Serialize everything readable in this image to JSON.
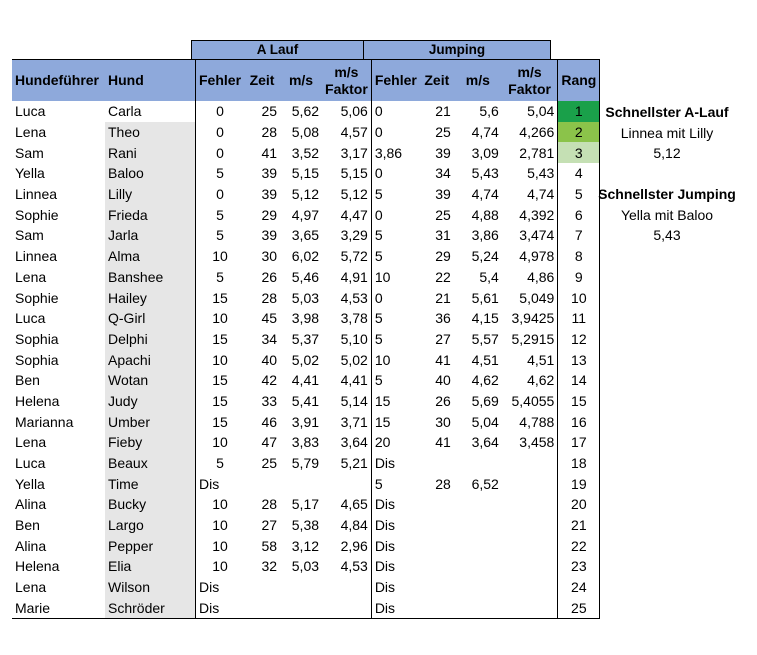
{
  "groups": {
    "a_lauf": "A Lauf",
    "jumping": "Jumping"
  },
  "headers": {
    "handler": "Hundeführer",
    "dog": "Hund",
    "a_fehler": "Fehler",
    "a_zeit": "Zeit",
    "a_ms": "m/s",
    "a_msf": "m/s Faktor",
    "j_fehler": "Fehler",
    "j_zeit": "Zeit",
    "j_ms": "m/s",
    "j_msf": "m/s Faktor",
    "rank": "Rang"
  },
  "rows": [
    {
      "h": "Luca",
      "d": "Carla",
      "af": "0",
      "az": "25",
      "ams": "5,62",
      "amsf": "5,06",
      "jf": "0",
      "jz": "21",
      "jms": "5,6",
      "jmsf": "5,04",
      "r": "1"
    },
    {
      "h": "Lena",
      "d": "Theo",
      "af": "0",
      "az": "28",
      "ams": "5,08",
      "amsf": "4,57",
      "jf": "0",
      "jz": "25",
      "jms": "4,74",
      "jmsf": "4,266",
      "r": "2"
    },
    {
      "h": "Sam",
      "d": "Rani",
      "af": "0",
      "az": "41",
      "ams": "3,52",
      "amsf": "3,17",
      "jf": "3,86",
      "jz": "39",
      "jms": "3,09",
      "jmsf": "2,781",
      "r": "3"
    },
    {
      "h": "Yella",
      "d": "Baloo",
      "af": "5",
      "az": "39",
      "ams": "5,15",
      "amsf": "5,15",
      "jf": "0",
      "jz": "34",
      "jms": "5,43",
      "jmsf": "5,43",
      "r": "4"
    },
    {
      "h": "Linnea",
      "d": "Lilly",
      "af": "0",
      "az": "39",
      "ams": "5,12",
      "amsf": "5,12",
      "jf": "5",
      "jz": "39",
      "jms": "4,74",
      "jmsf": "4,74",
      "r": "5"
    },
    {
      "h": "Sophie",
      "d": "Frieda",
      "af": "5",
      "az": "29",
      "ams": "4,97",
      "amsf": "4,47",
      "jf": "0",
      "jz": "25",
      "jms": "4,88",
      "jmsf": "4,392",
      "r": "6"
    },
    {
      "h": "Sam",
      "d": "Jarla",
      "af": "5",
      "az": "39",
      "ams": "3,65",
      "amsf": "3,29",
      "jf": "5",
      "jz": "31",
      "jms": "3,86",
      "jmsf": "3,474",
      "r": "7"
    },
    {
      "h": "Linnea",
      "d": "Alma",
      "af": "10",
      "az": "30",
      "ams": "6,02",
      "amsf": "5,72",
      "jf": "5",
      "jz": "29",
      "jms": "5,24",
      "jmsf": "4,978",
      "r": "8"
    },
    {
      "h": "Lena",
      "d": "Banshee",
      "af": "5",
      "az": "26",
      "ams": "5,46",
      "amsf": "4,91",
      "jf": "10",
      "jz": "22",
      "jms": "5,4",
      "jmsf": "4,86",
      "r": "9"
    },
    {
      "h": "Sophie",
      "d": "Hailey",
      "af": "15",
      "az": "28",
      "ams": "5,03",
      "amsf": "4,53",
      "jf": "0",
      "jz": "21",
      "jms": "5,61",
      "jmsf": "5,049",
      "r": "10"
    },
    {
      "h": "Luca",
      "d": "Q-Girl",
      "af": "10",
      "az": "45",
      "ams": "3,98",
      "amsf": "3,78",
      "jf": "5",
      "jz": "36",
      "jms": "4,15",
      "jmsf": "3,9425",
      "r": "11"
    },
    {
      "h": "Sophia",
      "d": "Delphi",
      "af": "15",
      "az": "34",
      "ams": "5,37",
      "amsf": "5,10",
      "jf": "5",
      "jz": "27",
      "jms": "5,57",
      "jmsf": "5,2915",
      "r": "12"
    },
    {
      "h": "Sophia",
      "d": "Apachi",
      "af": "10",
      "az": "40",
      "ams": "5,02",
      "amsf": "5,02",
      "jf": "10",
      "jz": "41",
      "jms": "4,51",
      "jmsf": "4,51",
      "r": "13"
    },
    {
      "h": "Ben",
      "d": "Wotan",
      "af": "15",
      "az": "42",
      "ams": "4,41",
      "amsf": "4,41",
      "jf": "5",
      "jz": "40",
      "jms": "4,62",
      "jmsf": "4,62",
      "r": "14"
    },
    {
      "h": "Helena",
      "d": "Judy",
      "af": "15",
      "az": "33",
      "ams": "5,41",
      "amsf": "5,14",
      "jf": "15",
      "jz": "26",
      "jms": "5,69",
      "jmsf": "5,4055",
      "r": "15"
    },
    {
      "h": "Marianna",
      "d": "Umber",
      "af": "15",
      "az": "46",
      "ams": "3,91",
      "amsf": "3,71",
      "jf": "15",
      "jz": "30",
      "jms": "5,04",
      "jmsf": "4,788",
      "r": "16"
    },
    {
      "h": "Lena",
      "d": "Fieby",
      "af": "10",
      "az": "47",
      "ams": "3,83",
      "amsf": "3,64",
      "jf": "20",
      "jz": "41",
      "jms": "3,64",
      "jmsf": "3,458",
      "r": "17"
    },
    {
      "h": "Luca",
      "d": "Beaux",
      "af": "5",
      "az": "25",
      "ams": "5,79",
      "amsf": "5,21",
      "jf": "Dis",
      "jz": "",
      "jms": "",
      "jmsf": "",
      "r": "18"
    },
    {
      "h": "Yella",
      "d": "Time",
      "af": "Dis",
      "az": "",
      "ams": "",
      "amsf": "",
      "jf": "5",
      "jz": "28",
      "jms": "6,52",
      "jmsf": "",
      "r": "19"
    },
    {
      "h": "Alina",
      "d": "Bucky",
      "af": "10",
      "az": "28",
      "ams": "5,17",
      "amsf": "4,65",
      "jf": "Dis",
      "jz": "",
      "jms": "",
      "jmsf": "",
      "r": "20"
    },
    {
      "h": "Ben",
      "d": "Largo",
      "af": "10",
      "az": "27",
      "ams": "5,38",
      "amsf": "4,84",
      "jf": "Dis",
      "jz": "",
      "jms": "",
      "jmsf": "",
      "r": "21"
    },
    {
      "h": "Alina",
      "d": "Pepper",
      "af": "10",
      "az": "58",
      "ams": "3,12",
      "amsf": "2,96",
      "jf": "Dis",
      "jz": "",
      "jms": "",
      "jmsf": "",
      "r": "22"
    },
    {
      "h": "Helena",
      "d": "Elia",
      "af": "10",
      "az": "32",
      "ams": "5,03",
      "amsf": "4,53",
      "jf": "Dis",
      "jz": "",
      "jms": "",
      "jmsf": "",
      "r": "23"
    },
    {
      "h": "Lena",
      "d": "Wilson",
      "af": "Dis",
      "az": "",
      "ams": "",
      "amsf": "",
      "jf": "Dis",
      "jz": "",
      "jms": "",
      "jmsf": "",
      "r": "24"
    },
    {
      "h": "Marie",
      "d": "Schröder",
      "af": "Dis",
      "az": "",
      "ams": "",
      "amsf": "",
      "jf": "Dis",
      "jz": "",
      "jms": "",
      "jmsf": "",
      "r": "25"
    }
  ],
  "gray_rows": [
    2,
    3,
    4,
    5,
    6,
    7,
    8,
    9,
    10,
    11,
    12,
    13,
    14,
    15,
    16,
    17,
    18,
    19,
    20,
    21,
    22,
    23,
    24,
    25
  ],
  "rank_colors": {
    "1": "#1aa04a",
    "2": "#8bc34a",
    "3": "#c5e0b4"
  },
  "side": {
    "fastest_a_title": "Schnellster A-Lauf",
    "fastest_a_name": "Linnea mit Lilly",
    "fastest_a_value": "5,12",
    "fastest_j_title": "Schnellster Jumping",
    "fastest_j_name": "Yella mit Baloo",
    "fastest_j_value": "5,43"
  }
}
